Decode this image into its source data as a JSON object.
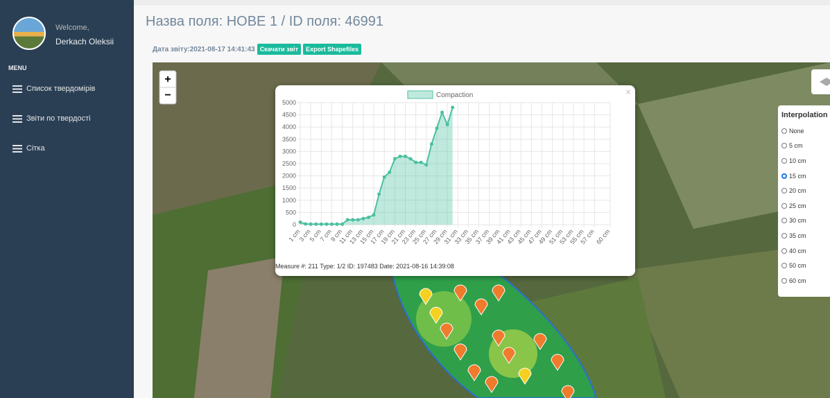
{
  "sidebar": {
    "welcome": "Welcome,",
    "user": "Derkach Oleksii",
    "menu_title": "MENU",
    "menu": [
      "Список твердомірів",
      "Звіти по твердості",
      "Сітка"
    ]
  },
  "header": {
    "title": "Назва поля: НОВЕ 1 / ID поля: 46991",
    "report_date": "Дата звіту:2021-08-17 14:41:43",
    "buttons": [
      "Скачати звіт",
      "Export Shapefiles"
    ]
  },
  "map": {
    "zoom_in": "+",
    "zoom_out": "−"
  },
  "popup": {
    "close": "×",
    "footer": "Measure #: 211 Type: 1/2 ID: 197483 Date: 2021-08-16 14:39:08"
  },
  "interpolation": {
    "title": "Interpolation",
    "options": [
      "None",
      "5 cm",
      "10 cm",
      "15 cm",
      "20 cm",
      "25 cm",
      "30 cm",
      "35 cm",
      "40 cm",
      "50 cm",
      "60 cm"
    ],
    "selected": "15 cm"
  },
  "chart_data": {
    "type": "area",
    "categories": [
      "1 cm",
      null,
      "3 cm",
      null,
      "5 cm",
      null,
      "7 cm",
      null,
      "9 cm",
      null,
      "11 cm",
      null,
      "13 cm",
      null,
      "15 cm",
      null,
      "17 cm",
      null,
      "19 cm",
      null,
      "21 cm",
      null,
      "23 cm",
      null,
      "25 cm",
      null,
      "27 cm",
      null,
      "29 cm",
      null,
      "31 cm",
      null,
      "33 cm",
      null,
      "35 cm",
      null,
      "37 cm",
      null,
      "39 cm",
      null,
      "41 cm",
      null,
      "43 cm",
      null,
      "45 cm",
      null,
      "47 cm",
      null,
      "49 cm",
      null,
      "51 cm",
      null,
      "53 cm",
      null,
      "55 cm",
      null,
      "57 cm",
      null,
      null,
      "60 cm"
    ],
    "series": [
      {
        "name": "Compaction",
        "color": "#4bc0a0",
        "values": [
          100,
          30,
          20,
          20,
          20,
          20,
          20,
          20,
          20,
          200,
          200,
          200,
          250,
          300,
          400,
          1250,
          1950,
          2150,
          2700,
          2800,
          2800,
          2700,
          2550,
          2550,
          2450,
          3300,
          3950,
          4600,
          4100,
          4800,
          null,
          null,
          null,
          null,
          null,
          null,
          null,
          null,
          null,
          null,
          null,
          null,
          null,
          null,
          null,
          null,
          null,
          null,
          null,
          null,
          null,
          null,
          null,
          null,
          null,
          null,
          null,
          null,
          null,
          null
        ]
      }
    ],
    "ylim": [
      0,
      5000
    ],
    "yticks": [
      0,
      500,
      1000,
      1500,
      2000,
      2500,
      3000,
      3500,
      4000,
      4500,
      5000
    ],
    "grid": true
  }
}
